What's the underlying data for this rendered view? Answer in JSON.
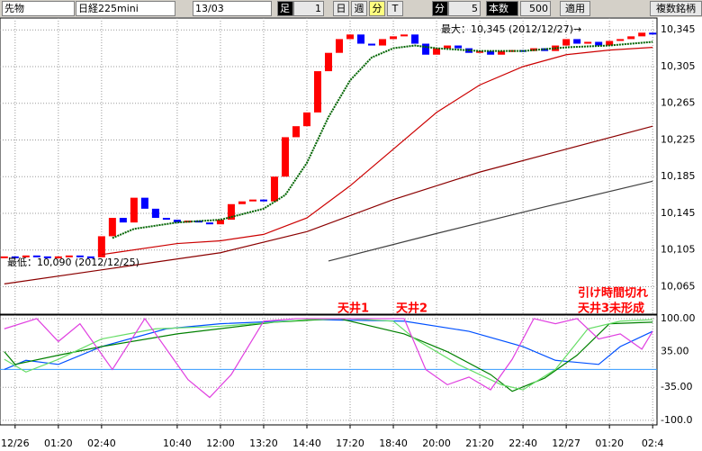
{
  "toolbar": {
    "selects": [
      "先物",
      "日経225mini",
      "13/03"
    ],
    "buttons": [
      "足",
      "1",
      "日",
      "週",
      "分",
      "T"
    ],
    "interval_label": "分",
    "interval": "5",
    "count_label": "本数",
    "count": "500",
    "apply": "適用",
    "multi": "複数銘柄"
  },
  "chart_data": [
    {
      "type": "candlestick",
      "up_color": "#ff0000",
      "down_color": "#0000ff",
      "grid": true,
      "xlim": [
        -0.4,
        60.4
      ],
      "ylim": [
        10035,
        10358
      ],
      "yticks": [
        {
          "value": 10345,
          "label": "10,345"
        },
        {
          "value": 10305,
          "label": "10,305"
        },
        {
          "value": 10265,
          "label": "10,265"
        },
        {
          "value": 10225,
          "label": "10,225"
        },
        {
          "value": 10185,
          "label": "10,185"
        },
        {
          "value": 10145,
          "label": "10,145"
        },
        {
          "value": 10105,
          "label": "10,105"
        },
        {
          "value": 10065,
          "label": "10,065"
        }
      ],
      "annotations": [
        "最大：10,345 (2012/12/27)→",
        "最低：10,090 (2012/12/25)"
      ],
      "series": [
        {
          "kind": "price",
          "x": [
            0,
            1,
            2,
            3,
            4,
            5,
            6,
            7,
            8,
            9,
            10,
            11,
            12,
            13,
            14,
            15,
            16,
            17,
            18,
            19,
            20,
            21,
            22,
            23,
            24,
            25,
            26,
            27,
            28,
            29,
            30,
            31,
            32,
            33,
            34,
            35,
            36,
            37,
            38,
            39,
            40,
            41,
            42,
            43,
            44,
            45,
            46,
            47,
            48,
            49,
            50,
            51,
            52,
            53,
            54,
            55,
            56,
            57,
            58,
            59,
            60
          ],
          "values": [
            10098,
            10097,
            10099,
            10098,
            10097,
            10098,
            10099,
            10098,
            10097,
            10120,
            10140,
            10135,
            10162,
            10150,
            10140,
            10138,
            10135,
            10137,
            10135,
            10133,
            10138,
            10155,
            10158,
            10160,
            10158,
            10185,
            10228,
            10240,
            10255,
            10300,
            10320,
            10335,
            10340,
            10330,
            10328,
            10335,
            10338,
            10340,
            10330,
            10318,
            10325,
            10328,
            10325,
            10320,
            10322,
            10318,
            10322,
            10323,
            10322,
            10325,
            10322,
            10328,
            10335,
            10330,
            10332,
            10328,
            10333,
            10335,
            10338,
            10342,
            10340
          ]
        },
        {
          "kind": "line",
          "color": "#006400",
          "style": "dotted",
          "x": [
            10,
            12,
            16,
            20,
            24,
            26,
            28,
            30,
            32,
            34,
            36,
            38,
            40,
            44,
            48,
            52,
            56,
            60
          ],
          "values": [
            10118,
            10128,
            10135,
            10138,
            10150,
            10165,
            10200,
            10250,
            10290,
            10315,
            10325,
            10328,
            10325,
            10322,
            10322,
            10326,
            10328,
            10332
          ]
        },
        {
          "kind": "line",
          "color": "#cc0000",
          "style": "solid",
          "x": [
            9,
            16,
            20,
            24,
            28,
            32,
            36,
            40,
            44,
            48,
            52,
            56,
            60
          ],
          "values": [
            10100,
            10112,
            10115,
            10122,
            10140,
            10175,
            10215,
            10255,
            10285,
            10305,
            10318,
            10323,
            10326
          ]
        },
        {
          "kind": "line",
          "color": "#8b0000",
          "style": "solid",
          "x": [
            0,
            10,
            20,
            28,
            36,
            44,
            52,
            60
          ],
          "values": [
            10068,
            10085,
            10102,
            10125,
            10160,
            10190,
            10215,
            10240
          ]
        },
        {
          "kind": "line",
          "color": "#404040",
          "style": "solid",
          "x": [
            30,
            40,
            50,
            60
          ],
          "values": [
            10093,
            10123,
            10152,
            10180
          ]
        }
      ]
    },
    {
      "type": "line",
      "grid": true,
      "reference_line": 0,
      "xlim": [
        -0.4,
        60.4
      ],
      "ylim": [
        -109,
        107
      ],
      "xticks": [
        {
          "value": 1,
          "label": "12/26"
        },
        {
          "value": 5,
          "label": "01:20"
        },
        {
          "value": 9,
          "label": "02:40"
        },
        {
          "value": 16,
          "label": "10:40"
        },
        {
          "value": 20,
          "label": "12:00"
        },
        {
          "value": 24,
          "label": "13:20"
        },
        {
          "value": 28,
          "label": "14:40"
        },
        {
          "value": 32,
          "label": "17:20"
        },
        {
          "value": 36,
          "label": "18:40"
        },
        {
          "value": 40,
          "label": "20:00"
        },
        {
          "value": 44,
          "label": "21:20"
        },
        {
          "value": 48,
          "label": "22:40"
        },
        {
          "value": 52,
          "label": "12/27"
        },
        {
          "value": 56,
          "label": "01:20"
        },
        {
          "value": 60,
          "label": "02:4"
        }
      ],
      "yticks": [
        {
          "value": 100,
          "label": "100.00"
        },
        {
          "value": 35,
          "label": "35.00"
        },
        {
          "value": -35,
          "label": "-35.00"
        },
        {
          "value": -100,
          "label": "-100.0"
        }
      ],
      "annotations": [
        "天井1",
        "天井2",
        "引け時間切れ",
        "天井3未形成"
      ],
      "series": [
        {
          "color": "#0050ff",
          "x": [
            0,
            2,
            5,
            9,
            15,
            20,
            29,
            37,
            43,
            48,
            51,
            55,
            57,
            60
          ],
          "values": [
            0,
            18,
            10,
            45,
            80,
            90,
            98,
            95,
            75,
            45,
            18,
            10,
            45,
            75
          ]
        },
        {
          "color": "#008000",
          "x": [
            0,
            1,
            5,
            9,
            16,
            25,
            31,
            37,
            41,
            45,
            47,
            50,
            53,
            56,
            60
          ],
          "values": [
            35,
            10,
            28,
            45,
            70,
            93,
            100,
            70,
            35,
            -10,
            -43,
            -17,
            28,
            90,
            93
          ]
        },
        {
          "color": "#66dd66",
          "x": [
            0,
            2,
            5,
            9,
            14,
            20,
            28,
            32,
            36,
            38,
            42,
            46,
            48,
            51,
            54,
            57,
            60
          ],
          "values": [
            20,
            -5,
            20,
            60,
            80,
            85,
            98,
            100,
            95,
            60,
            10,
            -30,
            -40,
            0,
            80,
            95,
            98
          ]
        },
        {
          "color": "#e040e0",
          "x": [
            0,
            3,
            5,
            7,
            10,
            13,
            17,
            19,
            21,
            24,
            27,
            32,
            35,
            37,
            39,
            41,
            43,
            45,
            47,
            49,
            51,
            53,
            55,
            57,
            59,
            60
          ],
          "values": [
            80,
            100,
            55,
            90,
            0,
            100,
            -20,
            -55,
            -10,
            95,
            100,
            100,
            100,
            100,
            0,
            -30,
            -15,
            -40,
            20,
            100,
            90,
            100,
            60,
            70,
            40,
            75
          ]
        }
      ]
    }
  ]
}
